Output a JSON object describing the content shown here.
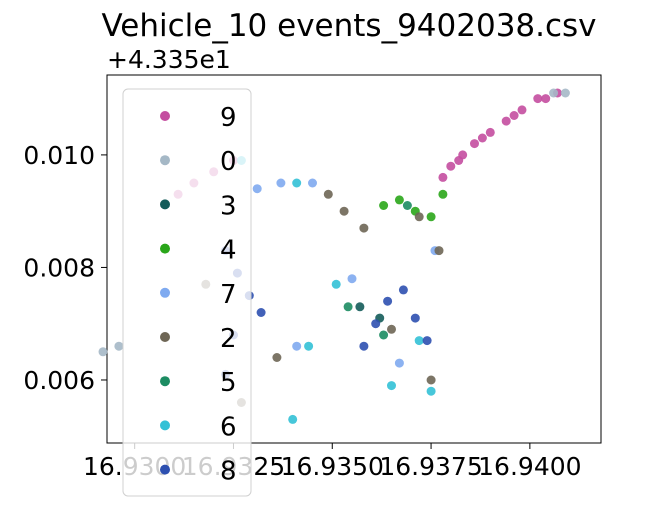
{
  "chart_data": {
    "type": "scatter",
    "title": "Vehicle_10 events_9402038.csv",
    "xlabel": "",
    "ylabel": "",
    "y_offset_label": "+4.335e1",
    "xlim": [
      16.9293,
      16.9418
    ],
    "ylim": [
      0.00488,
      0.01142
    ],
    "x_ticks": [
      16.93,
      16.9325,
      16.935,
      16.9375,
      16.94
    ],
    "x_tick_labels": [
      "16.9300",
      "16.9325",
      "16.9350",
      "16.9375",
      "16.9400"
    ],
    "y_ticks": [
      0.006,
      0.008,
      0.01
    ],
    "y_tick_labels": [
      "0.006",
      "0.008",
      "0.010"
    ],
    "grid": false,
    "legend": {
      "placement": "upper-left",
      "entries": [
        "9",
        "0",
        "3",
        "4",
        "7",
        "2",
        "5",
        "6",
        "8"
      ]
    },
    "series": [
      {
        "name": "9",
        "color": "#c44ea0",
        "points": [
          [
            16.9378,
            0.0096
          ],
          [
            16.938,
            0.0098
          ],
          [
            16.9383,
            0.01
          ],
          [
            16.9386,
            0.0102
          ],
          [
            16.939,
            0.0104
          ],
          [
            16.9394,
            0.0106
          ],
          [
            16.9398,
            0.0108
          ],
          [
            16.9402,
            0.011
          ],
          [
            16.9407,
            0.0111
          ],
          [
            16.9382,
            0.0099
          ],
          [
            16.9388,
            0.0103
          ],
          [
            16.9396,
            0.0107
          ],
          [
            16.9404,
            0.011
          ],
          [
            16.9311,
            0.0093
          ],
          [
            16.9315,
            0.0095
          ],
          [
            16.932,
            0.0097
          ],
          [
            16.9325,
            0.0099
          ]
        ]
      },
      {
        "name": "0",
        "color": "#a5b8c6",
        "points": [
          [
            16.9406,
            0.0111
          ],
          [
            16.9409,
            0.0111
          ],
          [
            16.9292,
            0.0065
          ],
          [
            16.9296,
            0.0066
          ]
        ]
      },
      {
        "name": "3",
        "color": "#145c5a",
        "points": [
          [
            16.9357,
            0.0073
          ],
          [
            16.9362,
            0.0071
          ]
        ]
      },
      {
        "name": "4",
        "color": "#2aa61a",
        "points": [
          [
            16.9363,
            0.0091
          ],
          [
            16.9367,
            0.0092
          ],
          [
            16.9371,
            0.009
          ],
          [
            16.9375,
            0.0089
          ],
          [
            16.9378,
            0.0093
          ]
        ]
      },
      {
        "name": "7",
        "color": "#7faaf0",
        "points": [
          [
            16.9331,
            0.0094
          ],
          [
            16.9337,
            0.0095
          ],
          [
            16.9345,
            0.0095
          ],
          [
            16.9355,
            0.0078
          ],
          [
            16.9376,
            0.0083
          ],
          [
            16.9367,
            0.0063
          ],
          [
            16.9341,
            0.0066
          ]
        ]
      },
      {
        "name": "2",
        "color": "#6e6655",
        "points": [
          [
            16.9349,
            0.0093
          ],
          [
            16.9353,
            0.009
          ],
          [
            16.9358,
            0.0087
          ],
          [
            16.9372,
            0.0089
          ],
          [
            16.9377,
            0.0083
          ],
          [
            16.9365,
            0.0069
          ],
          [
            16.9336,
            0.0064
          ],
          [
            16.9327,
            0.0056
          ],
          [
            16.9318,
            0.0077
          ],
          [
            16.9375,
            0.006
          ]
        ]
      },
      {
        "name": "5",
        "color": "#1c8c62",
        "points": [
          [
            16.9354,
            0.0073
          ],
          [
            16.9363,
            0.0068
          ],
          [
            16.9369,
            0.0091
          ]
        ]
      },
      {
        "name": "6",
        "color": "#33c1d6",
        "points": [
          [
            16.9327,
            0.0099
          ],
          [
            16.9341,
            0.0095
          ],
          [
            16.9351,
            0.0077
          ],
          [
            16.9372,
            0.0067
          ],
          [
            16.9344,
            0.0066
          ],
          [
            16.9365,
            0.0059
          ],
          [
            16.9375,
            0.0058
          ],
          [
            16.934,
            0.0053
          ]
        ]
      },
      {
        "name": "8",
        "color": "#2e50b0",
        "points": [
          [
            16.9323,
            0.0083
          ],
          [
            16.9326,
            0.0079
          ],
          [
            16.9329,
            0.0075
          ],
          [
            16.9332,
            0.0072
          ],
          [
            16.9325,
            0.0068
          ],
          [
            16.9323,
            0.0061
          ],
          [
            16.9358,
            0.0066
          ],
          [
            16.9361,
            0.007
          ],
          [
            16.9364,
            0.0074
          ],
          [
            16.9368,
            0.0076
          ],
          [
            16.9371,
            0.0071
          ],
          [
            16.9374,
            0.0067
          ]
        ]
      }
    ]
  }
}
